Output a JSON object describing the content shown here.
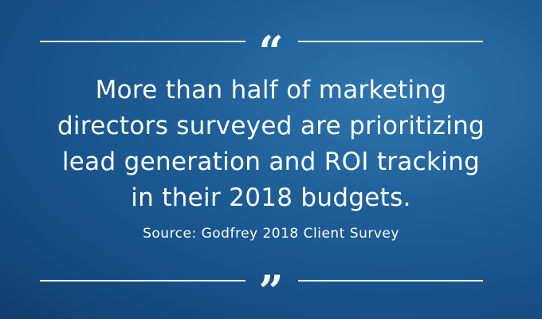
{
  "open_mark": "“",
  "close_mark": "”",
  "quote_lines": [
    "More than half of marketing",
    "directors surveyed are prioritizing",
    "lead generation and ROI tracking",
    "in their 2018 budgets."
  ],
  "source": "Source: Godfrey 2018 Client Survey"
}
